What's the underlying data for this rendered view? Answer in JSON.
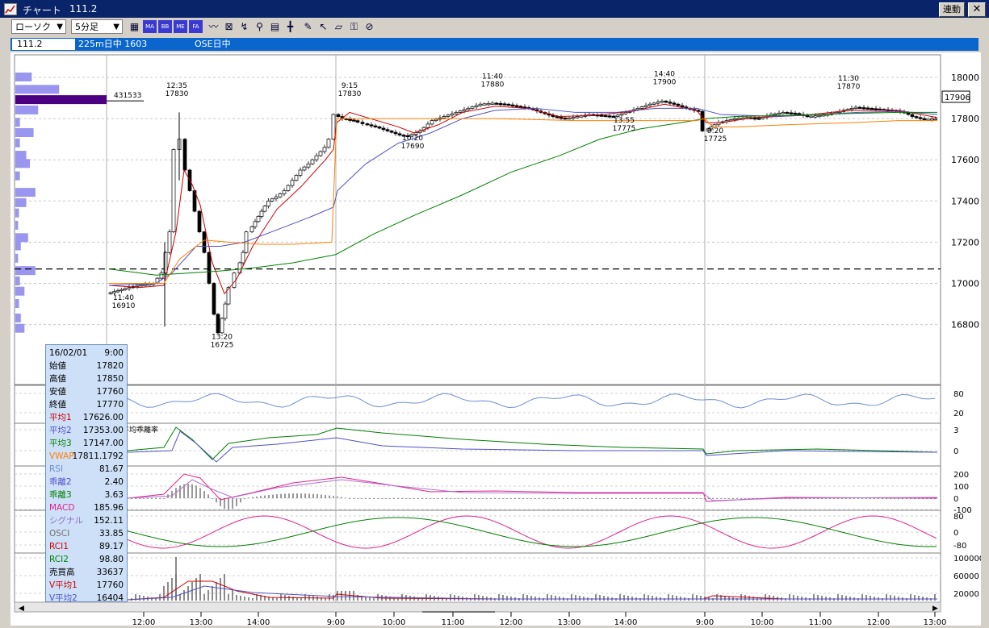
{
  "window": {
    "title": "チャート",
    "symbol_value": "111.2",
    "link_button": "連動",
    "close_glyph": "✕"
  },
  "toolbar": {
    "chart_type": "ローソク",
    "interval": "5分足",
    "icons": [
      "MA",
      "BB",
      "ME",
      "FA",
      "MN",
      "FB",
      "EX",
      "search",
      "calc",
      "bars",
      "pen",
      "cursor",
      "eraser",
      "key",
      "settings"
    ],
    "icon_labels": [
      "▦",
      "MA",
      "BB",
      "ME",
      "FA",
      "〰",
      "⊠",
      "↯",
      "⚲",
      "▤",
      "╋",
      "✎",
      "↖",
      "▱",
      "⚿",
      "⊘"
    ]
  },
  "infobar": {
    "current": "111.2",
    "instrument": "225m日中 1603",
    "exchange": "OSE日中"
  },
  "main_chart": {
    "price_ticks": [
      "18000",
      "17800",
      "17600",
      "17400",
      "17200",
      "17000",
      "16800"
    ],
    "current_price_label": "17906",
    "volume_profile_label": "431533",
    "annotations": [
      {
        "time": "12:35",
        "price": "17830"
      },
      {
        "time": "9:15",
        "price": "17830"
      },
      {
        "time": "11:40",
        "price": "17880"
      },
      {
        "time": "14:40",
        "price": "17900"
      },
      {
        "time": "11:30",
        "price": "17870"
      },
      {
        "time": "10:20",
        "price": "17690"
      },
      {
        "time": "13:55",
        "price": "17775"
      },
      {
        "time": "9:20",
        "price": "17725"
      },
      {
        "time": "11:40",
        "price": "16910"
      },
      {
        "time": "13:20",
        "price": "16725"
      }
    ]
  },
  "sub_panels": {
    "rsi_ticks": [
      "80",
      "20"
    ],
    "dev_label": "平均乖離率",
    "dev_ticks": [
      "3",
      "0"
    ],
    "macd_ticks": [
      "200",
      "100",
      "0",
      "-100"
    ],
    "rci_ticks": [
      "80",
      "0",
      "-80"
    ],
    "volume_ticks": [
      "100000",
      "60000",
      "20000"
    ]
  },
  "time_axis": [
    "12:00",
    "13:00",
    "14:00",
    "9:00",
    "10:00",
    "11:00",
    "12:00",
    "13:00",
    "14:00",
    "9:00",
    "10:00",
    "11:00",
    "12:00",
    "13:00"
  ],
  "data_panel": {
    "date": "16/02/01",
    "time": "9:00",
    "rows": [
      {
        "label": "始値",
        "value": "17820",
        "color": "#000000"
      },
      {
        "label": "高値",
        "value": "17850",
        "color": "#000000"
      },
      {
        "label": "安値",
        "value": "17760",
        "color": "#000000"
      },
      {
        "label": "終値",
        "value": "17770",
        "color": "#000000"
      },
      {
        "label": "平均1",
        "value": "17626.00",
        "color": "#cc0000"
      },
      {
        "label": "平均2",
        "value": "17353.00",
        "color": "#5050c8"
      },
      {
        "label": "平均3",
        "value": "17147.00",
        "color": "#008000"
      },
      {
        "label": "VWAP",
        "value": "17811.1792",
        "color": "#ff8000"
      },
      {
        "label": "RSI",
        "value": "81.67",
        "color": "#6e8cd8"
      },
      {
        "label": "乖離2",
        "value": "2.40",
        "color": "#5050c8"
      },
      {
        "label": "乖離3",
        "value": "3.63",
        "color": "#008000"
      },
      {
        "label": "MACD",
        "value": "185.96",
        "color": "#e0208a"
      },
      {
        "label": "シグナル",
        "value": "152.11",
        "color": "#9070c0"
      },
      {
        "label": "OSCI",
        "value": "33.85",
        "color": "#707070"
      },
      {
        "label": "RCI1",
        "value": "89.17",
        "color": "#cc0000"
      },
      {
        "label": "RCI2",
        "value": "98.80",
        "color": "#008000"
      },
      {
        "label": "売買高",
        "value": "33637",
        "color": "#000000"
      },
      {
        "label": "V平均1",
        "value": "17760",
        "color": "#cc0000"
      },
      {
        "label": "V平均2",
        "value": "16404",
        "color": "#5050c8"
      }
    ]
  },
  "colors": {
    "titlebar": "#0a246a",
    "infobar": "#0a66cc",
    "ma1": "#cc0000",
    "ma2": "#5050c8",
    "ma3": "#008000",
    "vwap": "#ff8000",
    "profile": "#9a96f0",
    "profile_max": "#4b0082"
  }
}
